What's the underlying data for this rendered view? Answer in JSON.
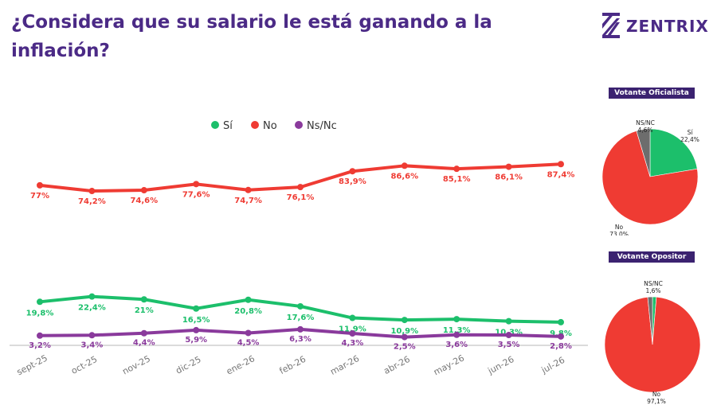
{
  "title": "¿Considera que su salario le está ganando a la inflación?",
  "brand": {
    "name": "ZENTRIX",
    "color": "#4b2a86"
  },
  "chart_data": [
    {
      "type": "line",
      "x": [
        "sept-25",
        "oct-25",
        "nov-25",
        "dic-25",
        "ene-26",
        "feb-26",
        "mar-26",
        "abr-26",
        "may-26",
        "jun-26",
        "jul-26"
      ],
      "ylim": [
        0,
        100
      ],
      "legend_position": "top-center",
      "grid": false,
      "series": [
        {
          "name": "Sí",
          "color": "#1cbf6b",
          "values": [
            19.8,
            22.4,
            21,
            16.5,
            20.8,
            17.6,
            11.9,
            10.9,
            11.3,
            10.3,
            9.8
          ],
          "labels": [
            "19,8%",
            "22,4%",
            "21%",
            "16,5%",
            "20,8%",
            "17,6%",
            "11,9%",
            "10,9%",
            "11,3%",
            "10,3%",
            "9,8%"
          ]
        },
        {
          "name": "No",
          "color": "#ef3b33",
          "values": [
            77,
            74.2,
            74.6,
            77.6,
            74.7,
            76.1,
            83.9,
            86.6,
            85.1,
            86.1,
            87.4
          ],
          "labels": [
            "77%",
            "74,2%",
            "74,6%",
            "77,6%",
            "74,7%",
            "76,1%",
            "83,9%",
            "86,6%",
            "85,1%",
            "86,1%",
            "87,4%"
          ]
        },
        {
          "name": "Ns/Nc",
          "color": "#8a3a9c",
          "values": [
            3.2,
            3.4,
            4.4,
            5.9,
            4.5,
            6.3,
            4.3,
            2.5,
            3.6,
            3.5,
            2.8
          ],
          "labels": [
            "3,2%",
            "3,4%",
            "4,4%",
            "5,9%",
            "4,5%",
            "6,3%",
            "4,3%",
            "2,5%",
            "3,6%",
            "3,5%",
            "2,8%"
          ]
        }
      ]
    },
    {
      "type": "pie",
      "title": "Votante Oficialista",
      "slices": [
        {
          "name": "Sí",
          "value": 22.4,
          "label": "22,4%",
          "color": "#1cbf6b"
        },
        {
          "name": "No",
          "value": 73.0,
          "label": "73,0%",
          "color": "#ef3b33"
        },
        {
          "name": "NS/NC",
          "value": 4.6,
          "label": "4,6%",
          "color": "#6d6d6d"
        }
      ]
    },
    {
      "type": "pie",
      "title": "Votante Opositor",
      "slices": [
        {
          "name": "Sí",
          "value": 1.3,
          "label": "",
          "color": "#1cbf6b"
        },
        {
          "name": "No",
          "value": 97.1,
          "label": "97,1%",
          "color": "#ef3b33"
        },
        {
          "name": "NS/NC",
          "value": 1.6,
          "label": "1,6%",
          "color": "#6d6d6d"
        }
      ]
    }
  ]
}
